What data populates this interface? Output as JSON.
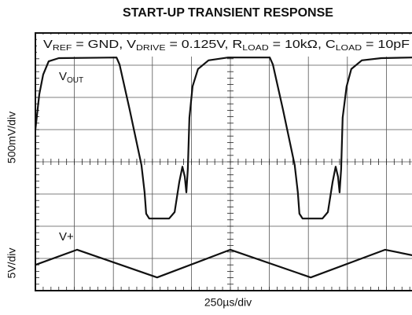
{
  "chart_data": {
    "type": "line",
    "title": "START-UP TRANSIENT RESPONSE",
    "subtitle": [
      {
        "text": "V"
      },
      {
        "text": "REF",
        "sub": true
      },
      {
        "text": " = GND, V"
      },
      {
        "text": "DRIVE",
        "sub": true
      },
      {
        "text": " = 0.125V, R"
      },
      {
        "text": "LOAD",
        "sub": true
      },
      {
        "text": " = 10kΩ, C"
      },
      {
        "text": "LOAD",
        "sub": true
      },
      {
        "text": " = 10pF"
      }
    ],
    "xlabel": "250µs/div",
    "ylabels": [
      "500mV/div",
      "5V/div"
    ],
    "xlim": [
      0,
      10
    ],
    "ylim": [
      0,
      8
    ],
    "xticks": [
      0,
      1,
      2,
      3,
      4,
      5,
      6,
      7,
      8,
      9,
      10
    ],
    "yticks": [
      0,
      1,
      2,
      3,
      4,
      5,
      6,
      7,
      8
    ],
    "grid": true,
    "series": [
      {
        "name": [
          {
            "text": "V"
          },
          {
            "text": "OUT",
            "sub": true
          }
        ],
        "color": "#111111",
        "x": [
          0,
          0.1,
          0.2,
          0.34,
          0.6,
          2.08,
          2.16,
          2.42,
          2.72,
          2.8,
          2.84,
          2.92,
          3.43,
          3.57,
          3.69,
          3.77,
          3.83,
          3.87,
          3.91,
          3.95,
          4.03,
          4.17,
          4.44,
          4.94,
          6.01,
          6.09,
          6.35,
          6.65,
          6.73,
          6.77,
          6.85,
          7.36,
          7.5,
          7.62,
          7.7,
          7.76,
          7.8,
          7.84,
          7.88,
          7.98,
          8.1,
          8.37,
          8.87,
          9.66
        ],
        "values": [
          5.0,
          6.1,
          6.71,
          7.12,
          7.22,
          7.24,
          7.02,
          5.61,
          3.9,
          3.05,
          2.39,
          2.24,
          2.24,
          2.44,
          3.37,
          3.85,
          3.54,
          3.05,
          3.78,
          5.37,
          6.34,
          6.88,
          7.15,
          7.24,
          7.24,
          7.02,
          5.61,
          3.9,
          3.05,
          2.39,
          2.24,
          2.24,
          2.44,
          3.37,
          3.85,
          3.54,
          3.05,
          3.78,
          5.37,
          6.34,
          6.88,
          7.15,
          7.22,
          7.24
        ]
      },
      {
        "name": [
          {
            "text": "V+"
          }
        ],
        "color": "#111111",
        "x": [
          0,
          1.07,
          3.12,
          5.0,
          7.06,
          8.97,
          9.66
        ],
        "values": [
          0.8,
          1.27,
          0.41,
          1.27,
          0.41,
          1.27,
          1.1
        ]
      }
    ]
  }
}
